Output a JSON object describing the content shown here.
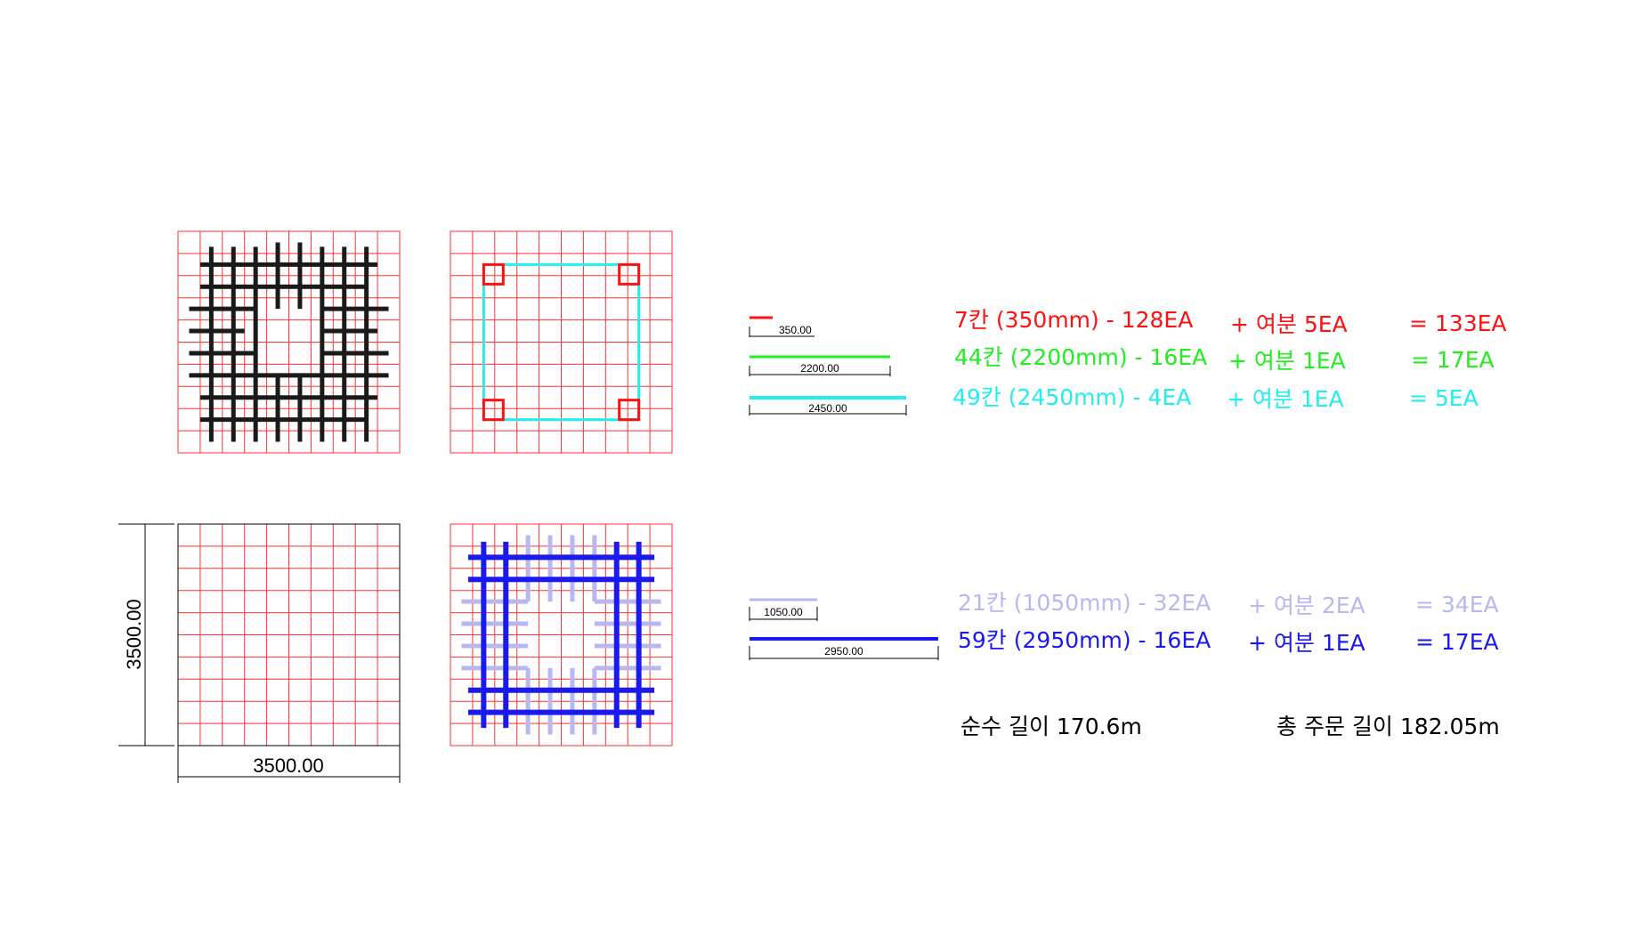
{
  "colors": {
    "grid": "#ff3333",
    "black_bar": "#1a1a1a",
    "green": "#22ee22",
    "cyan": "#22eeee",
    "lavender": "#b8b8ee",
    "blue": "#1a1aee",
    "red": "#ff1111"
  },
  "dimensions": {
    "width": "3500.00",
    "height": "3500.00"
  },
  "bar_lengths": {
    "r350": "350.00",
    "g2200": "2200.00",
    "c2450": "2450.00",
    "l1050": "1050.00",
    "b2950": "2950.00"
  },
  "specs": [
    {
      "desc": "7칸 (350mm) - 128EA",
      "extra": "+ 여분 5EA",
      "total": "= 133EA",
      "color": "#ff1111"
    },
    {
      "desc": "44칸 (2200mm) - 16EA",
      "extra": "+ 여분 1EA",
      "total": "= 17EA",
      "color": "#22ee22"
    },
    {
      "desc": "49칸 (2450mm) - 4EA",
      "extra": "+ 여분 1EA",
      "total": "= 5EA",
      "color": "#22eeee"
    },
    {
      "desc": "21칸 (1050mm) - 32EA",
      "extra": "+ 여분 2EA",
      "total": "= 34EA",
      "color": "#b8b8ee"
    },
    {
      "desc": "59칸 (2950mm) - 16EA",
      "extra": "+ 여분 1EA",
      "total": "= 17EA",
      "color": "#1a1aee"
    }
  ],
  "totals": {
    "net": "순수 길이 170.6m",
    "order": "총 주문 길이 182.05m"
  }
}
